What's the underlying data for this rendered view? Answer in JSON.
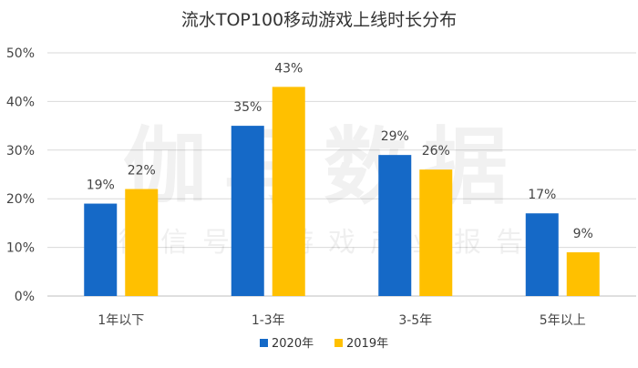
{
  "chart_data": {
    "type": "bar",
    "title": "流水TOP100移动游戏上线时长分布",
    "categories": [
      "1年以下",
      "1-3年",
      "3-5年",
      "5年以上"
    ],
    "series": [
      {
        "name": "2020年",
        "color": "#1569C7",
        "values": [
          19,
          35,
          29,
          17
        ],
        "labels": [
          "19%",
          "35%",
          "29%",
          "17%"
        ]
      },
      {
        "name": "2019年",
        "color": "#FFC000",
        "values": [
          22,
          43,
          26,
          9
        ],
        "labels": [
          "22%",
          "43%",
          "26%",
          "9%"
        ]
      }
    ],
    "ylim": [
      0,
      50
    ],
    "yticks": [
      "0%",
      "10%",
      "20%",
      "30%",
      "40%",
      "50%"
    ],
    "xlabel": "",
    "ylabel": "",
    "grid": true,
    "legend": "bottom"
  },
  "watermark": {
    "main": "伽马数据",
    "sub": "微信号：游戏产业报告"
  }
}
